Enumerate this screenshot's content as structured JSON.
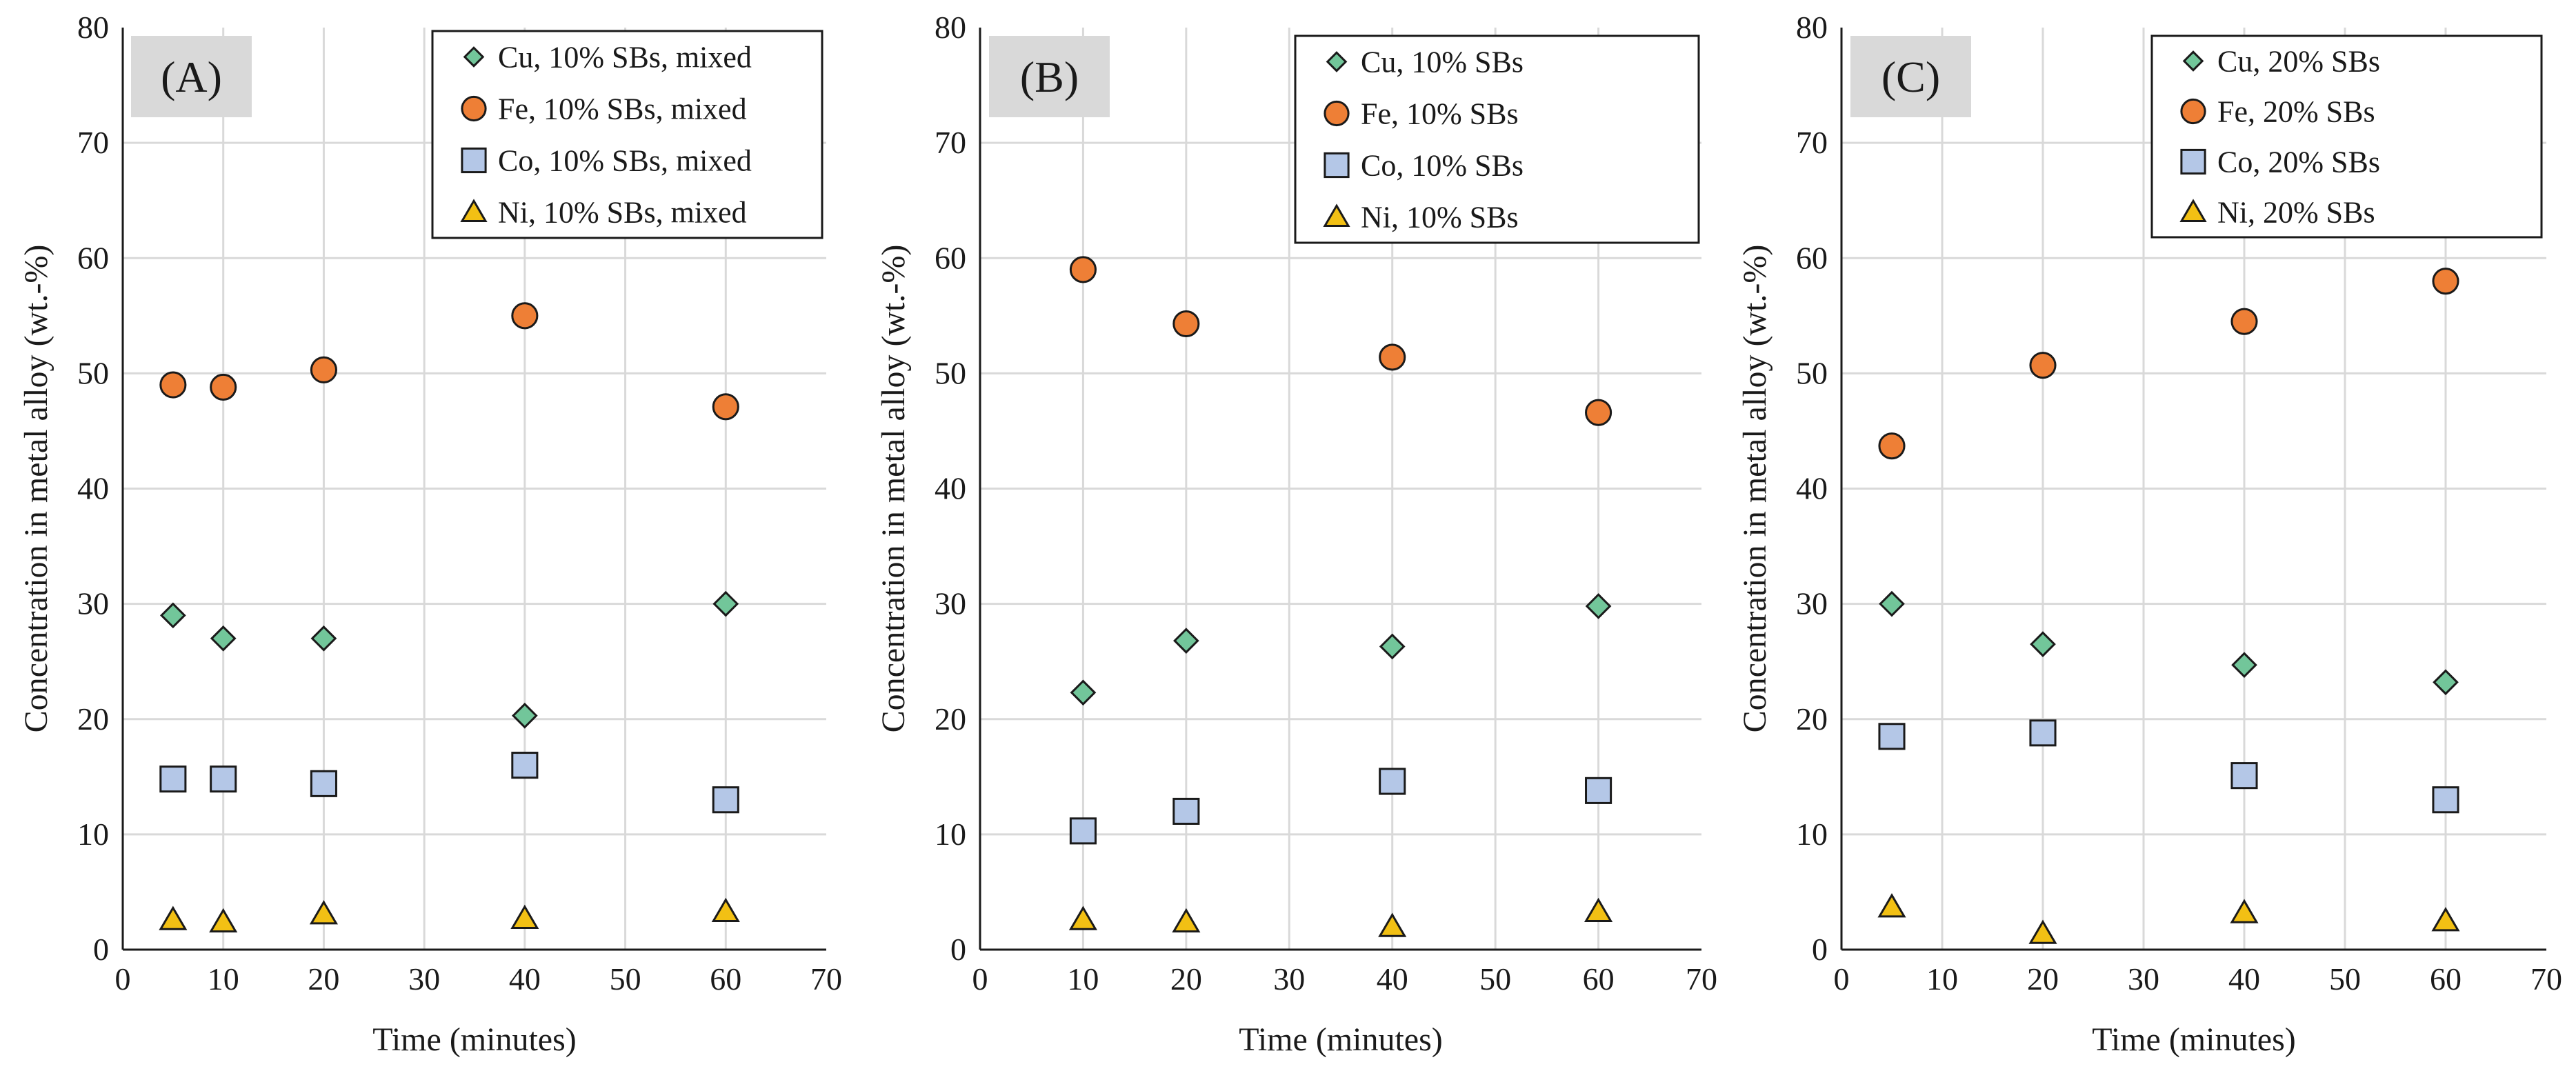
{
  "colors": {
    "Cu": "#72c69a",
    "Fe": "#ee7f36",
    "Co": "#b4c7e7",
    "Ni": "#f2c014",
    "grid": "#d9d9d9",
    "label_box": "#d9d9d9"
  },
  "chart_data": [
    {
      "type": "scatter",
      "panel_label": "(A)",
      "xlabel": "Time (minutes)",
      "ylabel": "Concentration in metal alloy (wt.-%)",
      "xlim": [
        0,
        70
      ],
      "ylim": [
        0,
        80
      ],
      "x_ticks": [
        "0",
        "10",
        "20",
        "30",
        "40",
        "50",
        "60",
        "70"
      ],
      "y_ticks": [
        "0",
        "10",
        "20",
        "30",
        "40",
        "50",
        "60",
        "70",
        "80"
      ],
      "grid": true,
      "legend_position": "top-right",
      "series": [
        {
          "key": "Cu",
          "marker": "diamond",
          "name": "Cu, 10% SBs, mixed",
          "x": [
            5,
            10,
            20,
            40,
            60
          ],
          "y": [
            29,
            27,
            27,
            20.3,
            30
          ]
        },
        {
          "key": "Fe",
          "marker": "circle",
          "name": "Fe, 10% SBs, mixed",
          "x": [
            5,
            10,
            20,
            40,
            60
          ],
          "y": [
            49,
            48.8,
            50.3,
            55,
            47.1
          ]
        },
        {
          "key": "Co",
          "marker": "square",
          "name": "Co, 10% SBs, mixed",
          "x": [
            5,
            10,
            20,
            40,
            60
          ],
          "y": [
            14.8,
            14.8,
            14.4,
            16,
            13
          ]
        },
        {
          "key": "Ni",
          "marker": "triangle",
          "name": "Ni, 10% SBs, mixed",
          "x": [
            5,
            10,
            20,
            40,
            60
          ],
          "y": [
            2.6,
            2.4,
            3.1,
            2.7,
            3.3
          ]
        }
      ]
    },
    {
      "type": "scatter",
      "panel_label": "(B)",
      "xlabel": "Time (minutes)",
      "ylabel": "Concentration in metal alloy (wt.-%)",
      "xlim": [
        0,
        70
      ],
      "ylim": [
        0,
        80
      ],
      "x_ticks": [
        "0",
        "10",
        "20",
        "30",
        "40",
        "50",
        "60",
        "70"
      ],
      "y_ticks": [
        "0",
        "10",
        "20",
        "30",
        "40",
        "50",
        "60",
        "70",
        "80"
      ],
      "grid": true,
      "legend_position": "top-right",
      "series": [
        {
          "key": "Cu",
          "marker": "diamond",
          "name": "Cu, 10% SBs",
          "x": [
            10,
            20,
            40,
            60
          ],
          "y": [
            22.3,
            26.8,
            26.3,
            29.8
          ]
        },
        {
          "key": "Fe",
          "marker": "circle",
          "name": "Fe, 10% SBs",
          "x": [
            10,
            20,
            40,
            60
          ],
          "y": [
            59,
            54.3,
            51.4,
            46.6
          ]
        },
        {
          "key": "Co",
          "marker": "square",
          "name": "Co, 10% SBs",
          "x": [
            10,
            20,
            40,
            60
          ],
          "y": [
            10.3,
            12,
            14.6,
            13.8
          ]
        },
        {
          "key": "Ni",
          "marker": "triangle",
          "name": "Ni, 10% SBs",
          "x": [
            10,
            20,
            40,
            60
          ],
          "y": [
            2.6,
            2.4,
            2,
            3.3
          ]
        }
      ]
    },
    {
      "type": "scatter",
      "panel_label": "(C)",
      "xlabel": "Time (minutes)",
      "ylabel": "Concentration in metal alloy (wt.-%)",
      "xlim": [
        0,
        70
      ],
      "ylim": [
        0,
        80
      ],
      "x_ticks": [
        "0",
        "10",
        "20",
        "30",
        "40",
        "50",
        "60",
        "70"
      ],
      "y_ticks": [
        "0",
        "10",
        "20",
        "30",
        "40",
        "50",
        "60",
        "70",
        "80"
      ],
      "grid": true,
      "legend_position": "top-right",
      "series": [
        {
          "key": "Cu",
          "marker": "diamond",
          "name": "Cu, 20% SBs",
          "x": [
            5,
            20,
            40,
            60
          ],
          "y": [
            30,
            26.5,
            24.7,
            23.2
          ]
        },
        {
          "key": "Fe",
          "marker": "circle",
          "name": "Fe, 20% SBs",
          "x": [
            5,
            20,
            40,
            60
          ],
          "y": [
            43.7,
            50.7,
            54.5,
            58
          ]
        },
        {
          "key": "Co",
          "marker": "square",
          "name": "Co, 20% SBs",
          "x": [
            5,
            20,
            40,
            60
          ],
          "y": [
            18.5,
            18.8,
            15.1,
            13
          ]
        },
        {
          "key": "Ni",
          "marker": "triangle",
          "name": "Ni, 20% SBs",
          "x": [
            5,
            20,
            40,
            60
          ],
          "y": [
            3.7,
            1.4,
            3.2,
            2.5
          ]
        }
      ]
    }
  ]
}
